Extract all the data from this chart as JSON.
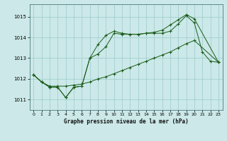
{
  "title": "Graphe pression niveau de la mer (hPa)",
  "bg_color": "#cce8e8",
  "grid_color": "#99cccc",
  "line_color": "#1a5c1a",
  "xlim": [
    -0.5,
    23.5
  ],
  "ylim": [
    1010.5,
    1015.6
  ],
  "yticks": [
    1011,
    1012,
    1013,
    1014,
    1015
  ],
  "xticks": [
    0,
    1,
    2,
    3,
    4,
    5,
    6,
    7,
    8,
    9,
    10,
    11,
    12,
    13,
    14,
    15,
    16,
    17,
    18,
    19,
    20,
    21,
    22,
    23
  ],
  "line1": {
    "x": [
      0,
      1,
      2,
      3,
      4,
      5,
      6,
      7,
      8,
      9,
      10,
      11,
      12,
      13,
      14,
      15,
      16,
      17,
      18,
      19,
      20,
      21,
      22,
      23
    ],
    "y": [
      1012.2,
      1011.85,
      1011.6,
      1011.6,
      1011.1,
      1011.6,
      1011.65,
      1013.0,
      1013.65,
      1014.1,
      1014.3,
      1014.2,
      1014.15,
      1014.15,
      1014.2,
      1014.2,
      1014.2,
      1014.3,
      1014.65,
      1015.05,
      1014.7,
      1013.3,
      1012.85,
      1012.8
    ]
  },
  "line2": {
    "x": [
      0,
      1,
      2,
      3,
      4,
      5,
      6,
      7,
      8,
      9,
      10,
      11,
      12,
      13,
      14,
      15,
      16,
      17,
      18,
      19,
      20,
      23
    ],
    "y": [
      1012.2,
      1011.85,
      1011.6,
      1011.6,
      1011.1,
      1011.6,
      1011.65,
      1013.0,
      1013.2,
      1013.55,
      1014.2,
      1014.15,
      1014.15,
      1014.15,
      1014.2,
      1014.25,
      1014.35,
      1014.6,
      1014.85,
      1015.1,
      1014.9,
      1012.8
    ]
  },
  "line3": {
    "x": [
      0,
      1,
      2,
      3,
      4,
      5,
      6,
      7,
      8,
      9,
      10,
      11,
      12,
      13,
      14,
      15,
      16,
      17,
      18,
      19,
      20,
      23
    ],
    "y": [
      1012.2,
      1011.85,
      1011.65,
      1011.65,
      1011.65,
      1011.7,
      1011.75,
      1011.85,
      1012.0,
      1012.1,
      1012.25,
      1012.4,
      1012.55,
      1012.7,
      1012.85,
      1013.0,
      1013.15,
      1013.3,
      1013.5,
      1013.7,
      1013.85,
      1012.8
    ]
  }
}
